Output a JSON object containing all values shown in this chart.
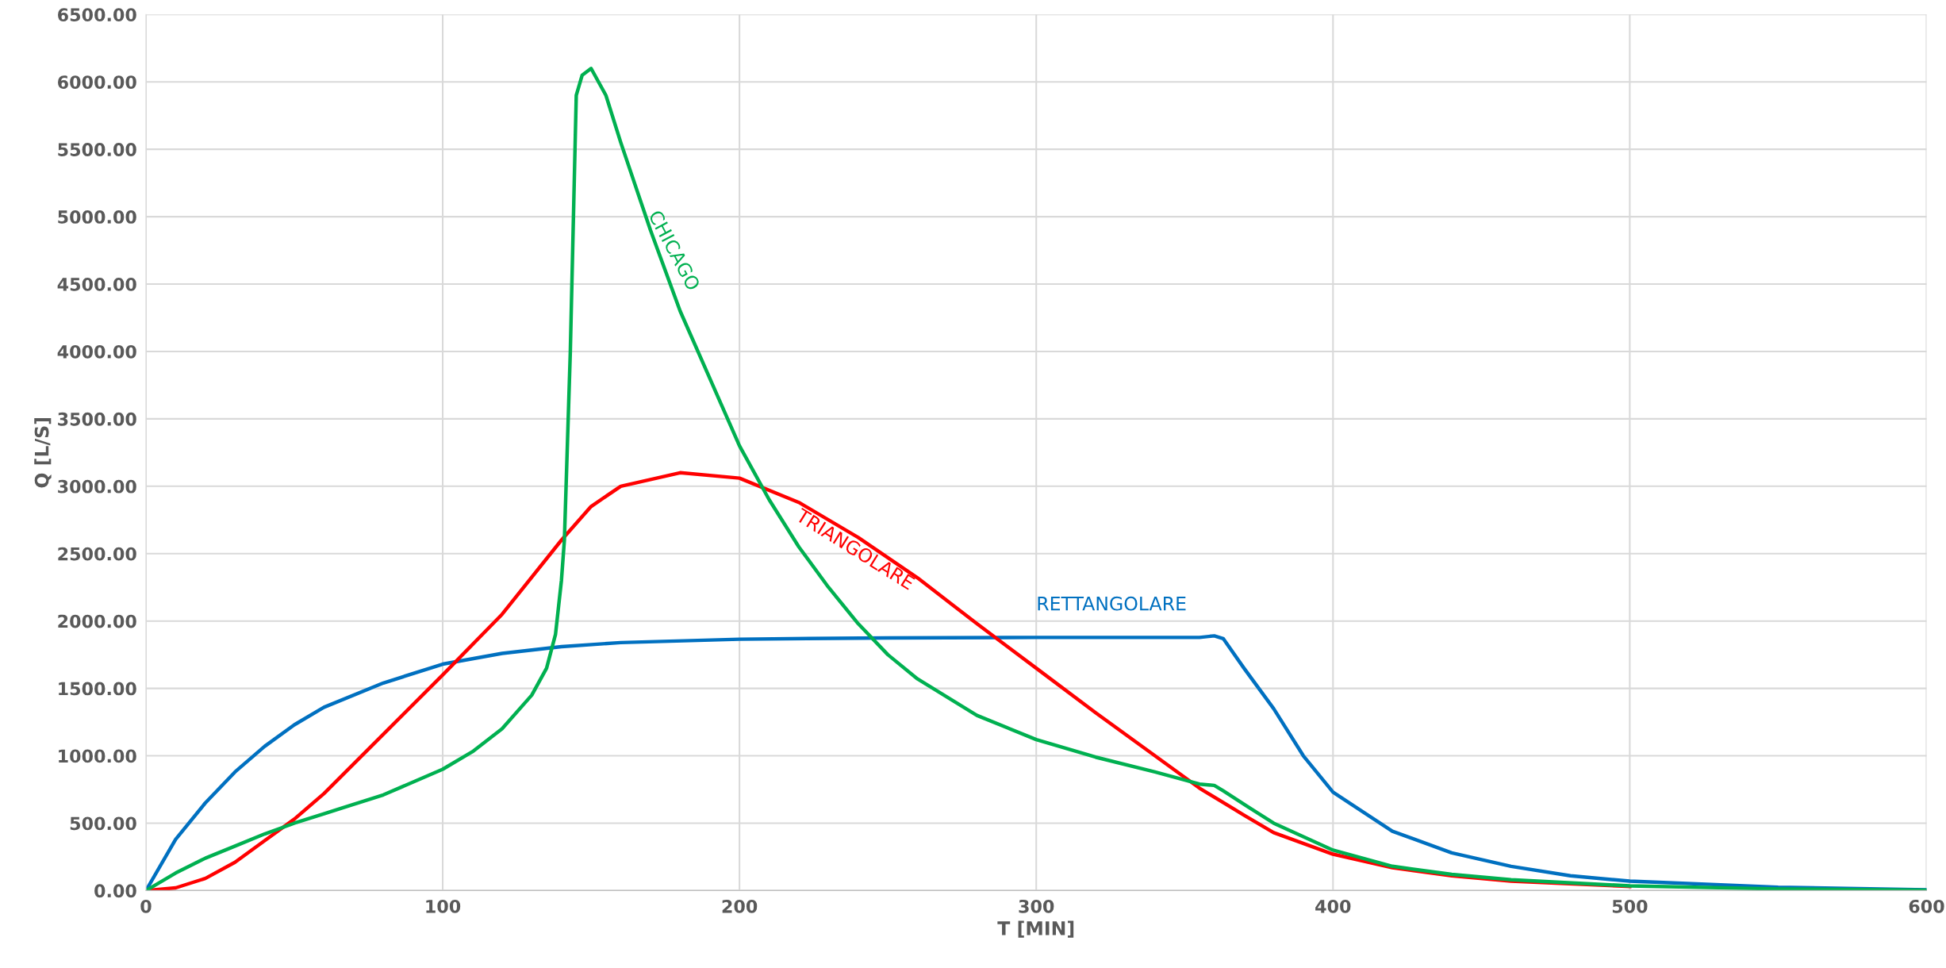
{
  "chart_data": {
    "type": "line",
    "xlabel": "T [MIN]",
    "ylabel": "Q [L/S]",
    "grid": true,
    "legend": false,
    "marker": "none",
    "line_style": "solid",
    "xlim": [
      0,
      600
    ],
    "xticks": [
      0,
      100,
      200,
      300,
      400,
      500,
      600
    ],
    "ylim": [
      0,
      6500
    ],
    "yticks": [
      {
        "value": 0,
        "label": "0.00"
      },
      {
        "value": 500,
        "label": "500.00"
      },
      {
        "value": 1000,
        "label": "1000.00"
      },
      {
        "value": 1500,
        "label": "1500.00"
      },
      {
        "value": 2000,
        "label": "2000.00"
      },
      {
        "value": 2500,
        "label": "2500.00"
      },
      {
        "value": 3000,
        "label": "3000.00"
      },
      {
        "value": 3500,
        "label": "3500.00"
      },
      {
        "value": 4000,
        "label": "4000.00"
      },
      {
        "value": 4500,
        "label": "4500.00"
      },
      {
        "value": 5000,
        "label": "5000.00"
      },
      {
        "value": 5500,
        "label": "5500.00"
      },
      {
        "value": 6000,
        "label": "6000.00"
      },
      {
        "value": 6500,
        "label": "6500.00"
      }
    ],
    "series": [
      {
        "name": "RETTANGOLARE",
        "color": "#0070c0",
        "x": [
          0,
          10,
          20,
          30,
          40,
          50,
          60,
          80,
          100,
          120,
          140,
          160,
          200,
          250,
          300,
          355,
          360,
          363,
          370,
          380,
          390,
          400,
          420,
          440,
          460,
          480,
          500,
          550,
          600
        ],
        "values": [
          0,
          380,
          650,
          880,
          1070,
          1230,
          1360,
          1540,
          1680,
          1760,
          1810,
          1840,
          1865,
          1875,
          1878,
          1878,
          1890,
          1870,
          1650,
          1350,
          1000,
          730,
          440,
          280,
          180,
          110,
          70,
          25,
          5
        ]
      },
      {
        "name": "TRIANGOLARE",
        "color": "#ff0000",
        "x": [
          0,
          10,
          20,
          30,
          40,
          50,
          60,
          80,
          100,
          120,
          140,
          150,
          160,
          180,
          200,
          220,
          240,
          260,
          280,
          300,
          320,
          340,
          355,
          370,
          380,
          400,
          420,
          440,
          460,
          500
        ],
        "values": [
          0,
          20,
          90,
          210,
          370,
          530,
          720,
          1160,
          1600,
          2050,
          2600,
          2850,
          3000,
          3100,
          3060,
          2880,
          2620,
          2320,
          1980,
          1650,
          1320,
          1000,
          760,
          560,
          430,
          270,
          170,
          110,
          70,
          30
        ]
      },
      {
        "name": "CHICAGO",
        "color": "#00b050",
        "x": [
          0,
          10,
          20,
          30,
          40,
          50,
          60,
          80,
          100,
          110,
          120,
          130,
          135,
          138,
          140,
          141,
          143,
          145,
          147,
          150,
          155,
          160,
          170,
          180,
          190,
          200,
          210,
          220,
          230,
          240,
          250,
          260,
          280,
          300,
          320,
          340,
          355,
          360,
          363,
          370,
          380,
          400,
          420,
          440,
          460,
          500,
          550,
          600
        ],
        "values": [
          0,
          130,
          240,
          330,
          420,
          500,
          570,
          710,
          900,
          1030,
          1200,
          1450,
          1650,
          1900,
          2300,
          2600,
          4000,
          5900,
          6050,
          6100,
          5900,
          5550,
          4900,
          4300,
          3800,
          3300,
          2900,
          2550,
          2250,
          1980,
          1750,
          1570,
          1300,
          1120,
          990,
          880,
          790,
          780,
          740,
          640,
          500,
          300,
          180,
          120,
          80,
          35,
          12,
          3
        ]
      }
    ]
  }
}
